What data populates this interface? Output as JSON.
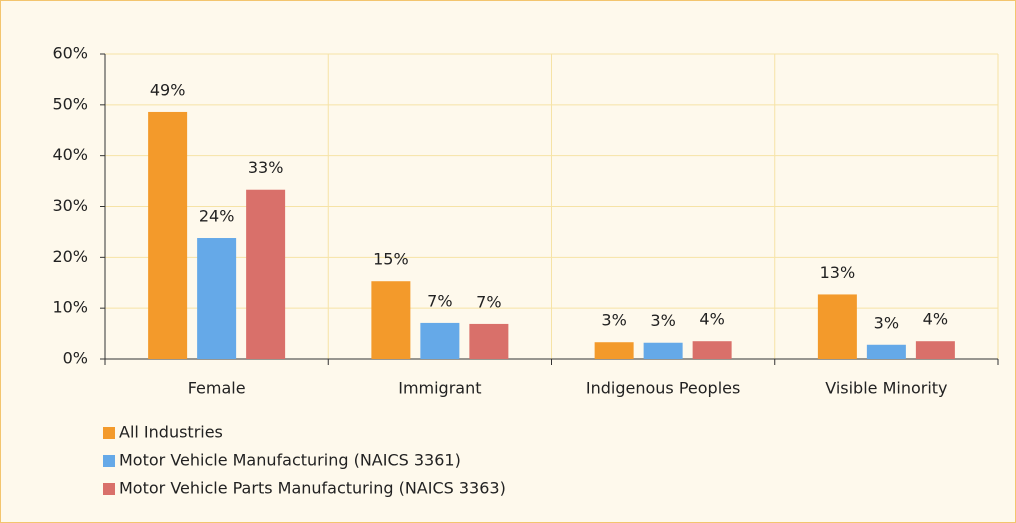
{
  "chart_data": {
    "type": "bar",
    "categories": [
      "Female",
      "Immigrant",
      "Indigenous Peoples",
      "Visible Minority"
    ],
    "series": [
      {
        "name": "All Industries",
        "color": "#f39a2b",
        "values": [
          48.6,
          15.3,
          3.3,
          12.7
        ],
        "value_labels": [
          "49%",
          "15%",
          "3%",
          "13%"
        ]
      },
      {
        "name": "Motor Vehicle Manufacturing (NAICS 3361)",
        "color": "#65a9e8",
        "values": [
          23.8,
          7.1,
          3.2,
          2.8
        ],
        "value_labels": [
          "24%",
          "7%",
          "3%",
          "3%"
        ]
      },
      {
        "name": "Motor Vehicle Parts Manufacturing (NAICS 3363)",
        "color": "#d9706a",
        "values": [
          33.3,
          6.9,
          3.5,
          3.5
        ],
        "value_labels": [
          "33%",
          "7%",
          "4%",
          "4%"
        ]
      }
    ],
    "ylim": [
      0,
      60
    ],
    "yticks": [
      {
        "value": 0,
        "label": "0%"
      },
      {
        "value": 10,
        "label": "10%"
      },
      {
        "value": 20,
        "label": "20%"
      },
      {
        "value": 30,
        "label": "30%"
      },
      {
        "value": 40,
        "label": "40%"
      },
      {
        "value": 50,
        "label": "50%"
      },
      {
        "value": 60,
        "label": "60%"
      }
    ],
    "grid": true
  }
}
